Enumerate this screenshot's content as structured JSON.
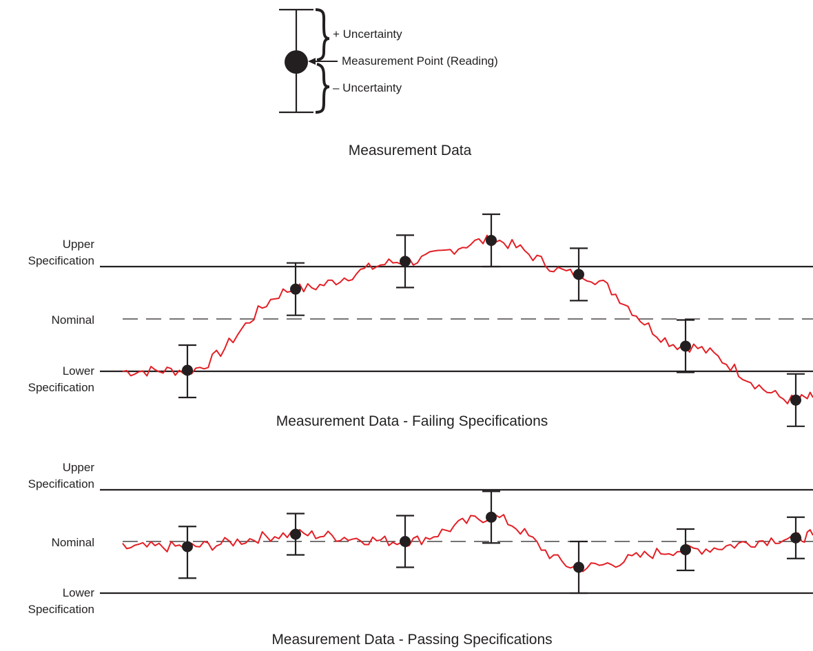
{
  "colors": {
    "ink": "#231f20",
    "trace": "#e31e24",
    "background": "#ffffff"
  },
  "legend": {
    "plus_uncertainty": "+ Uncertainty",
    "measurement_point": "Measurement Point (Reading)",
    "minus_uncertainty": "– Uncertainty",
    "caption": "Measurement Data"
  },
  "spec_labels": {
    "upper_line1": "Upper",
    "upper_line2": "Specification",
    "nominal": "Nominal",
    "lower_line1": "Lower",
    "lower_line2": "Specification"
  },
  "failing_panel": {
    "caption": "Measurement Data - Failing Specifications",
    "lines": {
      "upper": 1.0,
      "nominal": 0.0,
      "lower": -1.0
    },
    "readings": [
      {
        "value": -0.98,
        "plus": 0.48,
        "minus": 0.52
      },
      {
        "value": 0.57,
        "plus": 0.5,
        "minus": 0.5
      },
      {
        "value": 1.1,
        "plus": 0.5,
        "minus": 0.5
      },
      {
        "value": 1.5,
        "plus": 0.5,
        "minus": 0.5
      },
      {
        "value": 0.85,
        "plus": 0.5,
        "minus": 0.5
      },
      {
        "value": -0.52,
        "plus": 0.5,
        "minus": 0.5
      },
      {
        "value": -1.55,
        "plus": 0.5,
        "minus": 0.5
      }
    ]
  },
  "passing_panel": {
    "caption": "Measurement Data - Passing Specifications",
    "lines": {
      "upper": 1.0,
      "nominal": 0.0,
      "lower": -1.0
    },
    "readings": [
      {
        "value": -0.1,
        "plus": 0.39,
        "minus": 0.61
      },
      {
        "value": 0.14,
        "plus": 0.4,
        "minus": 0.4
      },
      {
        "value": 0.0,
        "plus": 0.5,
        "minus": 0.5
      },
      {
        "value": 0.47,
        "plus": 0.5,
        "minus": 0.5
      },
      {
        "value": -0.5,
        "plus": 0.5,
        "minus": 0.5
      },
      {
        "value": -0.16,
        "plus": 0.4,
        "minus": 0.4
      },
      {
        "value": 0.07,
        "plus": 0.4,
        "minus": 0.4
      }
    ]
  }
}
